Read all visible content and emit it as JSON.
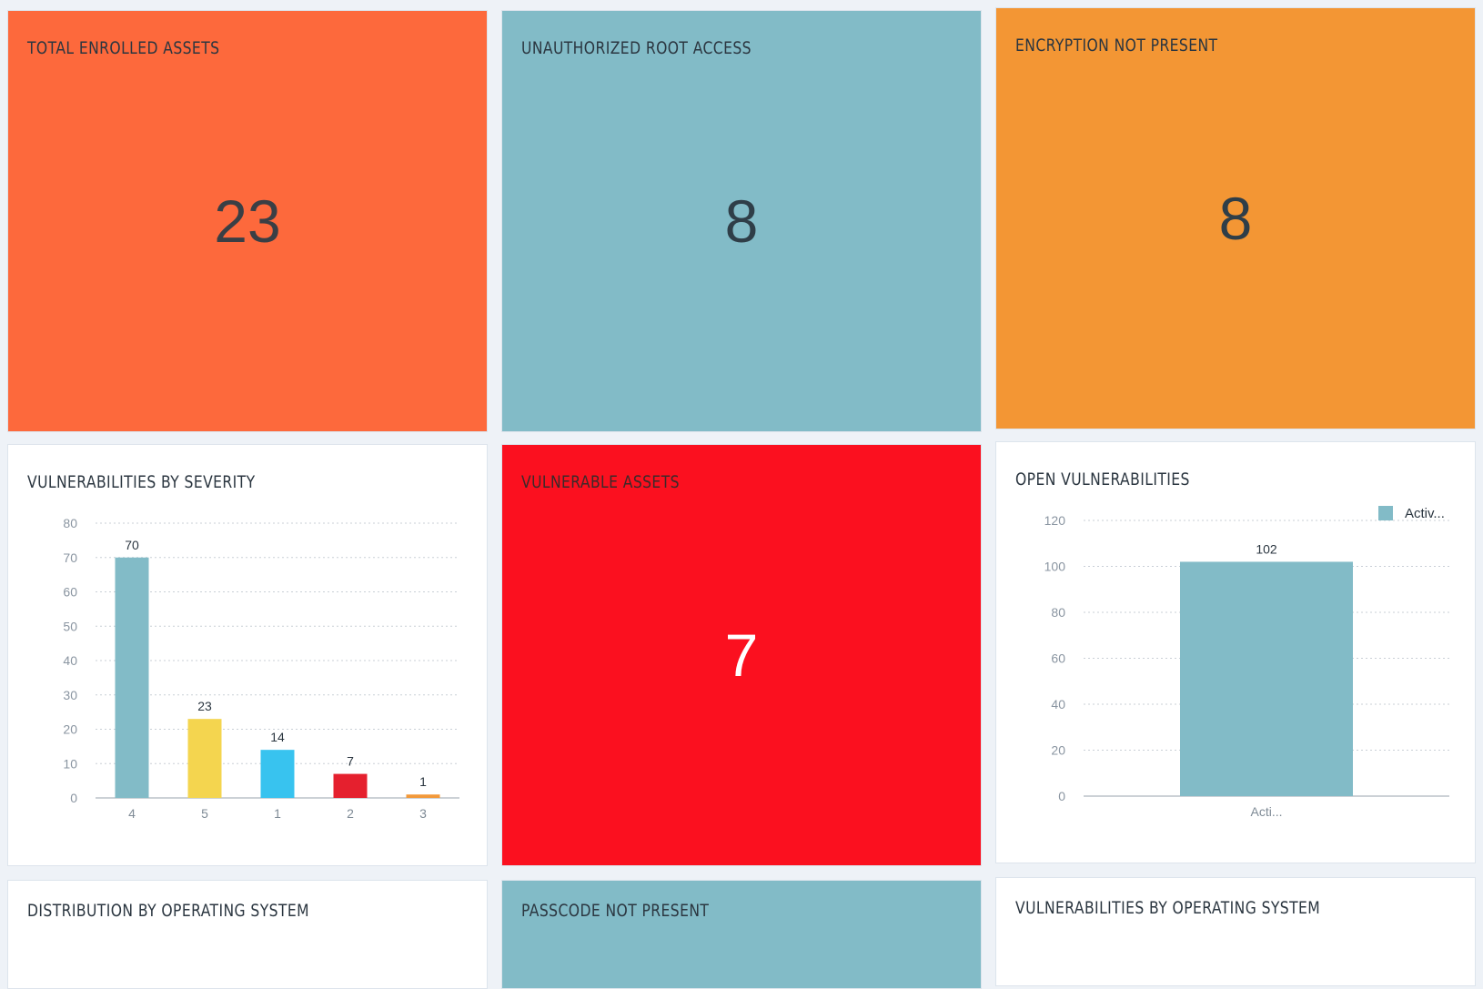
{
  "colors": {
    "orange_red": "#fd693c",
    "teal": "#82bbc7",
    "orange": "#f39634",
    "red": "#fb101f",
    "white": "#ffffff",
    "title_dark": "#2b3640",
    "value_dark": "#2f3e48"
  },
  "tiles": {
    "total_enrolled": {
      "title": "TOTAL ENROLLED ASSETS",
      "value": "23"
    },
    "unauthorized_root": {
      "title": "UNAUTHORIZED ROOT ACCESS",
      "value": "8"
    },
    "encryption": {
      "title": "ENCRYPTION NOT PRESENT",
      "value": "8"
    },
    "vuln_severity": {
      "title": "VULNERABILITIES BY SEVERITY"
    },
    "vulnerable_assets": {
      "title": "VULNERABLE ASSETS",
      "value": "7"
    },
    "open_vulns": {
      "title": "OPEN VULNERABILITIES"
    },
    "distribution_os": {
      "title": "DISTRIBUTION BY OPERATING SYSTEM"
    },
    "passcode": {
      "title": "PASSCODE NOT PRESENT"
    },
    "vulns_os": {
      "title": "VULNERABILITIES BY OPERATING SYSTEM"
    }
  },
  "chart_data": [
    {
      "type": "bar",
      "title": "VULNERABILITIES BY SEVERITY",
      "categories": [
        "4",
        "5",
        "1",
        "2",
        "3"
      ],
      "values": [
        70,
        23,
        14,
        7,
        1
      ],
      "bar_colors": [
        "#82bbc7",
        "#f4d54f",
        "#38c3ef",
        "#e5202e",
        "#f2993a"
      ],
      "ylim": [
        0,
        80
      ],
      "yticks": [
        0,
        10,
        20,
        30,
        40,
        50,
        60,
        70,
        80
      ],
      "grid": true,
      "data_labels": true
    },
    {
      "type": "bar",
      "title": "OPEN VULNERABILITIES",
      "categories": [
        "Acti..."
      ],
      "series": [
        {
          "name": "Activ...",
          "values": [
            102
          ]
        }
      ],
      "bar_colors": [
        "#82bbc7"
      ],
      "ylim": [
        0,
        120
      ],
      "yticks": [
        0,
        20,
        40,
        60,
        80,
        100,
        120
      ],
      "grid": true,
      "legend": "top-right",
      "data_labels": true
    }
  ]
}
